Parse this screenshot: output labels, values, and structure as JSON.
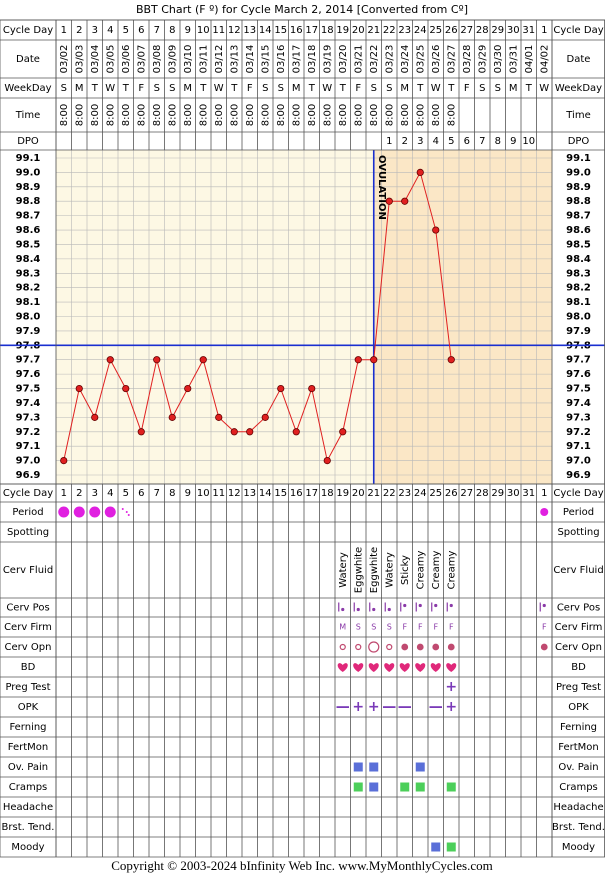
{
  "title": "BBT Chart (F º) for Cycle March 2, 2014  [Converted from Cº]",
  "labels": {
    "cycle_day": "Cycle Day",
    "date": "Date",
    "weekday": "WeekDay",
    "time": "Time",
    "dpo": "DPO"
  },
  "cycle_days": [
    1,
    2,
    3,
    4,
    5,
    6,
    7,
    8,
    9,
    10,
    11,
    12,
    13,
    14,
    15,
    16,
    17,
    18,
    19,
    20,
    21,
    22,
    23,
    24,
    25,
    26,
    27,
    28,
    29,
    30,
    31,
    1
  ],
  "dates": [
    "03/02",
    "03/03",
    "03/04",
    "03/05",
    "03/06",
    "03/07",
    "03/08",
    "03/09",
    "03/10",
    "03/11",
    "03/12",
    "03/13",
    "03/14",
    "03/15",
    "03/16",
    "03/17",
    "03/18",
    "03/19",
    "03/20",
    "03/21",
    "03/22",
    "03/23",
    "03/24",
    "03/25",
    "03/26",
    "03/27",
    "03/28",
    "03/29",
    "03/30",
    "03/31",
    "04/01",
    "04/02"
  ],
  "weekdays": [
    "S",
    "M",
    "T",
    "W",
    "T",
    "F",
    "S",
    "S",
    "M",
    "T",
    "W",
    "T",
    "F",
    "S",
    "S",
    "M",
    "T",
    "W",
    "T",
    "F",
    "S",
    "S",
    "M",
    "T",
    "W",
    "T",
    "F",
    "S",
    "S",
    "M",
    "T",
    "W"
  ],
  "times": [
    "8:00",
    "8:00",
    "8:00",
    "8:00",
    "8:00",
    "8:00",
    "8:00",
    "8:00",
    "8:00",
    "8:00",
    "8:00",
    "8:00",
    "8:00",
    "8:00",
    "8:00",
    "8:00",
    "8:00",
    "8:00",
    "8:00",
    "8:00",
    "8:00",
    "8:00",
    "8:00",
    "8:00",
    "8:00",
    "8:00",
    null,
    null,
    null,
    null,
    null,
    null
  ],
  "dpo": [
    null,
    null,
    null,
    null,
    null,
    null,
    null,
    null,
    null,
    null,
    null,
    null,
    null,
    null,
    null,
    null,
    null,
    null,
    null,
    null,
    null,
    1,
    2,
    3,
    4,
    5,
    6,
    7,
    8,
    9,
    10,
    null
  ],
  "chart_data": {
    "type": "line",
    "color": "#e02020",
    "values": [
      97.0,
      97.5,
      97.3,
      97.7,
      97.5,
      97.2,
      97.7,
      97.3,
      97.5,
      97.7,
      97.3,
      97.2,
      97.2,
      97.3,
      97.5,
      97.2,
      97.5,
      97.0,
      97.2,
      97.7,
      97.7,
      98.8,
      98.8,
      99.0,
      98.6,
      97.7,
      null,
      null,
      null,
      null,
      null,
      null
    ],
    "ylim": [
      96.9,
      99.1
    ],
    "yticks": [
      99.1,
      {
        "value": 99,
        "label": "99.0"
      },
      98.9,
      98.8,
      98.7,
      98.6,
      98.5,
      98.4,
      98.3,
      98.2,
      98.1,
      {
        "value": 98,
        "label": "98.0"
      },
      97.9,
      97.8,
      97.7,
      97.6,
      97.5,
      97.4,
      97.3,
      97.2,
      97.1,
      {
        "value": 97,
        "label": "97.0"
      },
      96.9
    ],
    "grid": true,
    "coverline": 97.8,
    "ovulation_cycle_day": 21,
    "ovulation_label": "OVULATION"
  },
  "rows": [
    {
      "label": "Period"
    },
    {
      "label": "Spotting"
    },
    {
      "label": "Cerv Fluid",
      "values": [
        null,
        null,
        null,
        null,
        null,
        null,
        null,
        null,
        null,
        null,
        null,
        null,
        null,
        null,
        null,
        null,
        null,
        null,
        "Watery",
        "Eggwhite",
        "Eggwhite",
        "Watery",
        "Sticky",
        "Creamy",
        "Creamy",
        "Creamy",
        null,
        null,
        null,
        null,
        null,
        null
      ]
    },
    {
      "label": "Cerv Pos"
    },
    {
      "label": "Cerv Firm",
      "values": [
        null,
        null,
        null,
        null,
        null,
        null,
        null,
        null,
        null,
        null,
        null,
        null,
        null,
        null,
        null,
        null,
        null,
        null,
        "M",
        "S",
        "S",
        "S",
        "F",
        "F",
        "F",
        "F",
        null,
        null,
        null,
        null,
        null,
        "F"
      ]
    },
    {
      "label": "Cerv Opn"
    },
    {
      "label": "BD"
    },
    {
      "label": "Preg Test",
      "values": [
        null,
        null,
        null,
        null,
        null,
        null,
        null,
        null,
        null,
        null,
        null,
        null,
        null,
        null,
        null,
        null,
        null,
        null,
        null,
        null,
        null,
        null,
        null,
        null,
        null,
        "+",
        null,
        null,
        null,
        null,
        null,
        null
      ]
    },
    {
      "label": "OPK",
      "values": [
        null,
        null,
        null,
        null,
        null,
        null,
        null,
        null,
        null,
        null,
        null,
        null,
        null,
        null,
        null,
        null,
        null,
        null,
        "—",
        "+",
        "+",
        "—",
        "—",
        null,
        "—",
        "+",
        null,
        null,
        null,
        null,
        null,
        null
      ]
    },
    {
      "label": "Ferning"
    },
    {
      "label": "FertMon"
    },
    {
      "label": "Ov. Pain"
    },
    {
      "label": "Cramps"
    },
    {
      "label": "Headache"
    },
    {
      "label": "Brst. Tend."
    },
    {
      "label": "Moody"
    }
  ],
  "footer": "Copyright © 2003-2024 bInfinity Web Inc.     www.MyMonthlyCycles.com"
}
